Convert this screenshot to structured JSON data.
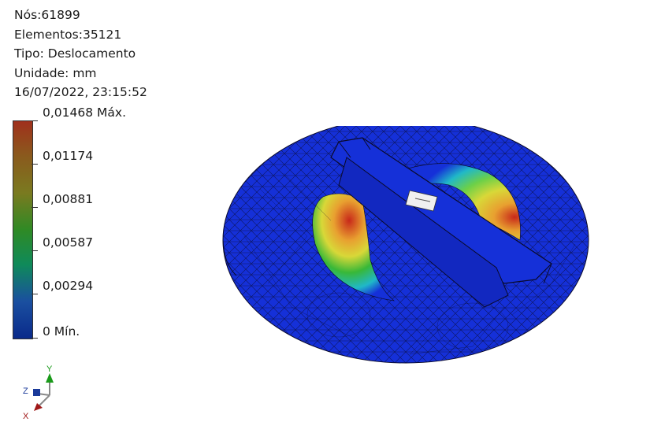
{
  "info": {
    "nodes": "Nós:61899",
    "elements": "Elementos:35121",
    "type": "Tipo: Deslocamento",
    "unit": "Unidade: mm",
    "timestamp": "16/07/2022, 23:15:52"
  },
  "legend": {
    "max": "0,01468 Máx.",
    "v4": "0,01174",
    "v3": "0,00881",
    "v2": "0,00587",
    "v1": "0,00294",
    "min": "0 Mín."
  },
  "triad": {
    "x": "X",
    "y": "Y",
    "z": "Z"
  },
  "colors": {
    "mesh_blue": "#1530d8",
    "mesh_line": "#0a0a2a",
    "max_red": "#c8281a",
    "hot_orange": "#e8a030",
    "hot_yellow": "#d8d838",
    "hot_green": "#38b838",
    "cyan": "#20b8c8"
  }
}
